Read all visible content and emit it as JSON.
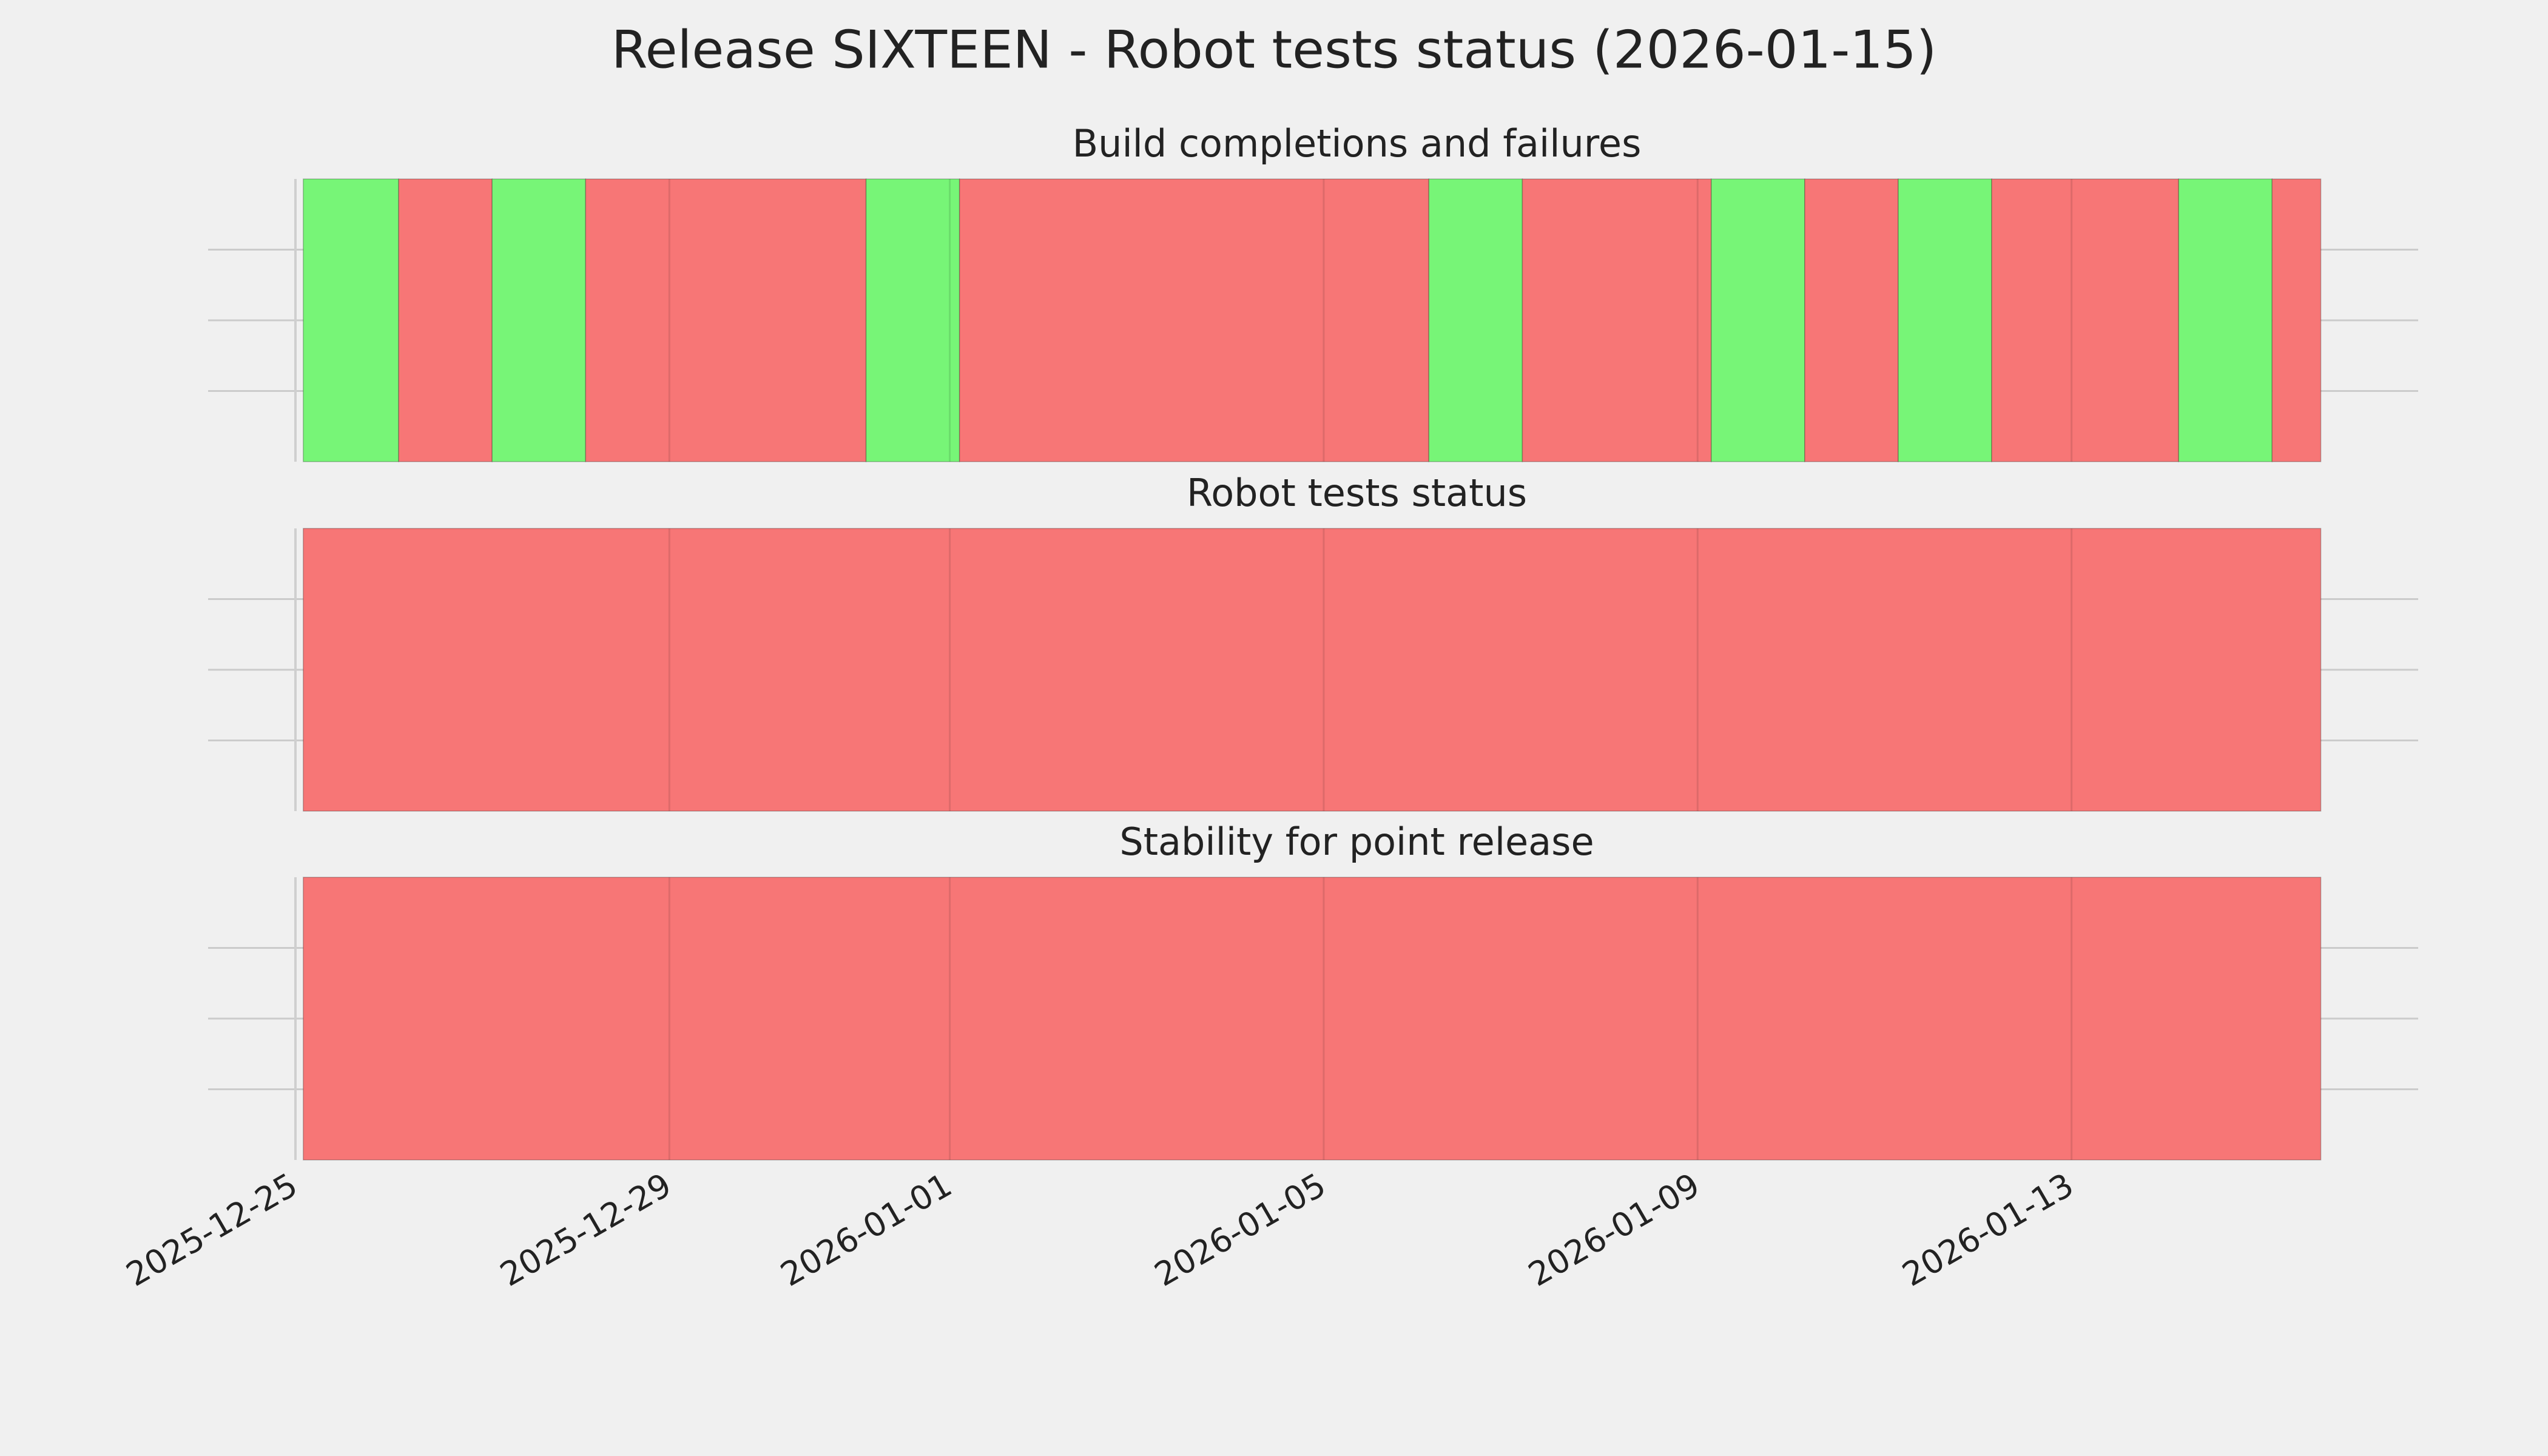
{
  "title": "Release SIXTEEN - Robot tests status (2026-01-15)",
  "chart_data": [
    {
      "type": "timeline",
      "title": "Build completions and failures",
      "x": [
        "2025-12-25T02:00",
        "2025-12-26T02:30",
        "2025-12-27T02:30",
        "2025-12-28T02:30",
        "2025-12-31T02:30",
        "2026-01-01T02:30",
        "2026-01-06T03:00",
        "2026-01-07T03:00",
        "2026-01-09T03:30",
        "2026-01-10T03:30",
        "2026-01-11T03:30",
        "2026-01-12T03:30",
        "2026-01-14T03:30",
        "2026-01-15T03:30",
        "2026-01-15T16:00"
      ],
      "colors": [
        "#77f577",
        "#f77676",
        "#77f577",
        "#f77676",
        "#77f577",
        "#f77676",
        "#77f577",
        "#f77676",
        "#77f577",
        "#f77676",
        "#77f577",
        "#f77676",
        "#77f577",
        "#f77676"
      ],
      "xlim": [
        "2025-12-25",
        "2026-01-16T17:00"
      ],
      "grid": true
    },
    {
      "type": "timeline",
      "title": "Robot tests status",
      "x": [
        "2025-12-25T02:00",
        "2026-01-15T16:00"
      ],
      "colors": [
        "#f77676"
      ],
      "xlim": [
        "2025-12-25",
        "2026-01-16T17:00"
      ],
      "grid": true
    },
    {
      "type": "timeline",
      "title": "Stability for point release",
      "x": [
        "2025-12-25T02:00",
        "2026-01-15T16:00"
      ],
      "colors": [
        "#f77676"
      ],
      "xlim": [
        "2025-12-25",
        "2026-01-16T17:00"
      ],
      "xticks": [
        "2025-12-25",
        "2025-12-29",
        "2026-01-01",
        "2026-01-05",
        "2026-01-09",
        "2026-01-13"
      ],
      "grid": true
    }
  ]
}
